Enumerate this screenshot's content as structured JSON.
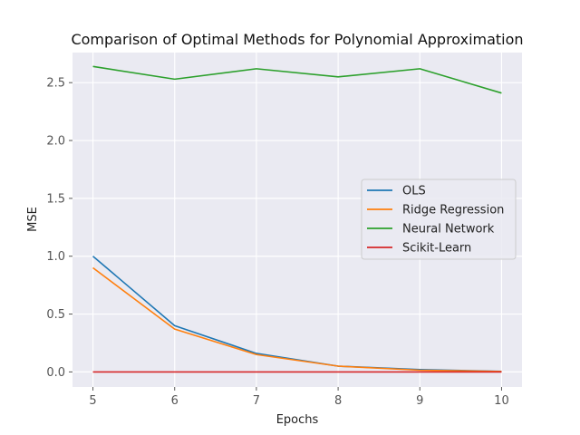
{
  "chart_data": {
    "type": "line",
    "title": "Comparison of Optimal Methods for Polynomial Approximation",
    "xlabel": "Epochs",
    "ylabel": "MSE",
    "x": [
      5,
      6,
      7,
      8,
      9,
      10
    ],
    "xlim": [
      4.75,
      10.25
    ],
    "ylim": [
      -0.13,
      2.76
    ],
    "xticks": [
      "5",
      "6",
      "7",
      "8",
      "9",
      "10"
    ],
    "yticks": [
      "0.0",
      "0.5",
      "1.0",
      "1.5",
      "2.0",
      "2.5"
    ],
    "ytick_values": [
      0.0,
      0.5,
      1.0,
      1.5,
      2.0,
      2.5
    ],
    "grid": true,
    "legend_position": "center-right",
    "series": [
      {
        "name": "OLS",
        "color": "#1f77b4",
        "values": [
          1.0,
          0.4,
          0.16,
          0.05,
          0.02,
          0.005
        ]
      },
      {
        "name": "Ridge Regression",
        "color": "#ff7f0e",
        "values": [
          0.9,
          0.37,
          0.15,
          0.05,
          0.015,
          0.004
        ]
      },
      {
        "name": "Neural Network",
        "color": "#2ca02c",
        "values": [
          2.64,
          2.53,
          2.62,
          2.55,
          2.62,
          2.41
        ]
      },
      {
        "name": "Scikit-Learn",
        "color": "#d62728",
        "values": [
          0.0,
          0.0,
          0.0,
          0.0,
          0.0,
          0.0
        ]
      }
    ]
  }
}
